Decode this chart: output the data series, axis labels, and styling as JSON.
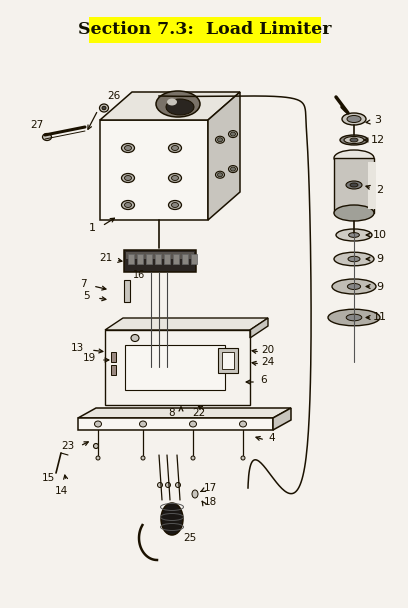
{
  "title": "Section 7.3:  Load Limiter",
  "title_bg": "#FFFF00",
  "title_color": "#111100",
  "bg_color": "#f5f2ed",
  "fig_width": 4.08,
  "fig_height": 6.08,
  "dpi": 100,
  "lw_main": 1.1,
  "dark": "#1a1100",
  "gray_light": "#e8e5de",
  "gray_mid": "#c8c5be",
  "gray_dark": "#a0a098"
}
